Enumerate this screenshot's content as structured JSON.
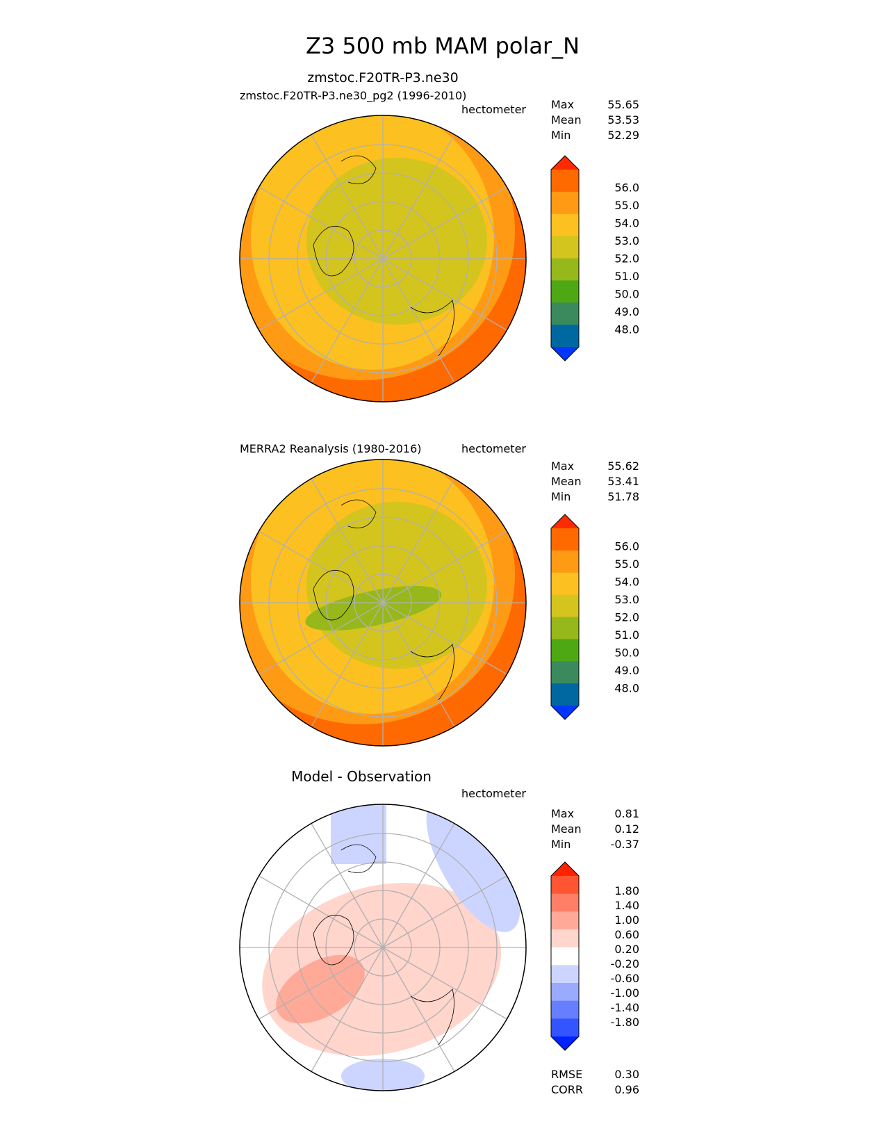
{
  "title": "Z3 500 mb MAM polar_N",
  "chart_data": [
    {
      "type": "heatmap",
      "projection": "north polar stereographic",
      "title": "zmstoc.F20TR-P3.ne30",
      "left_label": "zmstoc.F20TR-P3.ne30_pg2 (1996-2010)",
      "units": "hectometer",
      "stats": [
        {
          "label": "Max",
          "value": "55.65"
        },
        {
          "label": "Mean",
          "value": "53.53"
        },
        {
          "label": "Min",
          "value": "52.29"
        }
      ],
      "levels": [
        "56.0",
        "55.0",
        "54.0",
        "53.0",
        "52.0",
        "51.0",
        "50.0",
        "49.0",
        "48.0"
      ],
      "colors": [
        "#ff2a00",
        "#ff6a00",
        "#ff9a14",
        "#fcc020",
        "#d4c41e",
        "#97b81a",
        "#4ea814",
        "#3a8a5e",
        "#0068a0",
        "#0036ff"
      ],
      "fields": [
        {
          "color": "#ff6a00"
        },
        {
          "color": "#ff9a14"
        },
        {
          "color": "#fcc020"
        },
        {
          "color": "#d4c41e"
        }
      ]
    },
    {
      "type": "heatmap",
      "projection": "north polar stereographic",
      "left_label": "MERRA2 Reanalysis (1980-2016)",
      "units": "hectometer",
      "stats": [
        {
          "label": "Max",
          "value": "55.62"
        },
        {
          "label": "Mean",
          "value": "53.41"
        },
        {
          "label": "Min",
          "value": "51.78"
        }
      ],
      "levels": [
        "56.0",
        "55.0",
        "54.0",
        "53.0",
        "52.0",
        "51.0",
        "50.0",
        "49.0",
        "48.0"
      ],
      "colors": [
        "#ff2a00",
        "#ff6a00",
        "#ff9a14",
        "#fcc020",
        "#d4c41e",
        "#97b81a",
        "#4ea814",
        "#3a8a5e",
        "#0068a0",
        "#0036ff"
      ],
      "fields": [
        {
          "color": "#ff6a00"
        },
        {
          "color": "#ff9a14"
        },
        {
          "color": "#fcc020"
        },
        {
          "color": "#d4c41e"
        },
        {
          "color": "#97b81a"
        }
      ]
    },
    {
      "type": "heatmap",
      "projection": "north polar stereographic",
      "title": "Model - Observation",
      "units": "hectometer",
      "stats": [
        {
          "label": "Max",
          "value": "0.81"
        },
        {
          "label": "Mean",
          "value": "0.12"
        },
        {
          "label": "Min",
          "value": "-0.37"
        }
      ],
      "levels": [
        "1.80",
        "1.40",
        "1.00",
        "0.60",
        "0.20",
        "-0.20",
        "-0.60",
        "-1.00",
        "-1.40",
        "-1.80"
      ],
      "colors": [
        "#ff2200",
        "#ff5533",
        "#ff7f66",
        "#ffaa99",
        "#ffd5cc",
        "#ffffff",
        "#ccd5ff",
        "#99aaff",
        "#667fff",
        "#3355ff",
        "#0022ff"
      ],
      "fields": [
        {
          "color": "#ffd5cc"
        },
        {
          "color": "#ffaa99"
        },
        {
          "color": "#ccd5ff"
        }
      ],
      "metrics": [
        {
          "label": "RMSE",
          "value": "0.30"
        },
        {
          "label": "CORR",
          "value": "0.96"
        }
      ]
    }
  ]
}
